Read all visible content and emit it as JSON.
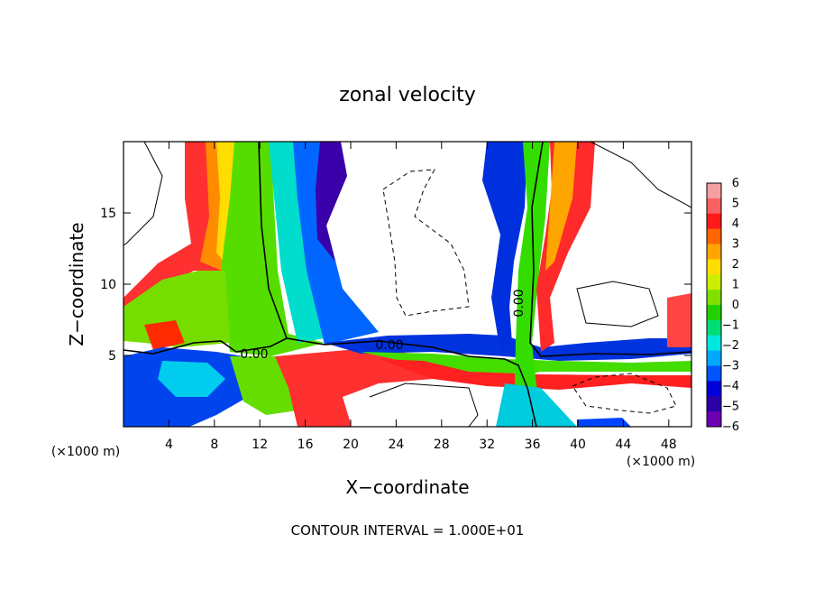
{
  "chart_data": {
    "type": "heatmap",
    "title": "zonal velocity",
    "xlabel": "X−coordinate",
    "ylabel": "Z−coordinate",
    "x_unit_left": "(×1000 m)",
    "x_unit_right": "(×1000 m)",
    "xlim": [
      0,
      50
    ],
    "ylim": [
      0,
      20
    ],
    "x_ticks": [
      4,
      8,
      12,
      16,
      20,
      24,
      28,
      32,
      36,
      40,
      44,
      48
    ],
    "x_tick_labels": [
      "4",
      "8",
      "12",
      "16",
      "20",
      "24",
      "28",
      "32",
      "36",
      "40",
      "44",
      "48"
    ],
    "y_ticks": [
      5,
      10,
      15
    ],
    "y_tick_labels": [
      "5",
      "10",
      "15"
    ],
    "colorbar": {
      "min": -6,
      "max": 6,
      "tick_values": [
        6,
        5,
        4,
        3,
        2,
        1,
        0,
        -1,
        -2,
        -3,
        -4,
        -5,
        -6
      ],
      "tick_labels": [
        "6",
        "5",
        "4",
        "3",
        "2",
        "1",
        "0",
        "−1",
        "−2",
        "−3",
        "−4",
        "−5",
        "−6"
      ],
      "colors": [
        "#f5a0a0",
        "#fa6060",
        "#ff1a1a",
        "#ff6600",
        "#ffa500",
        "#ffdd00",
        "#ccee00",
        "#7fe000",
        "#22d000",
        "#00dd77",
        "#00e8e0",
        "#00a8ff",
        "#0055ff",
        "#0000d8",
        "#2a00a8",
        "#6a00b0"
      ]
    },
    "contour_labels": [
      "0.00",
      "0.00",
      "0.00"
    ],
    "footer": "CONTOUR INTERVAL = 1.000E+01"
  }
}
